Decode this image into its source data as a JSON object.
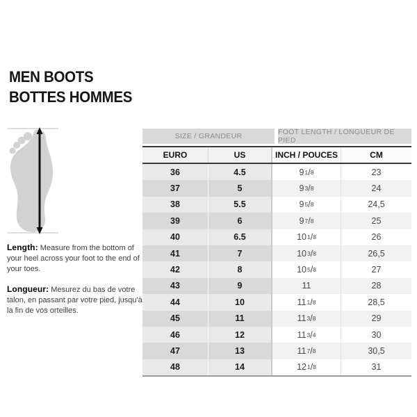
{
  "title": {
    "line1": "MEN BOOTS",
    "line2": "BOTTES HOMMES"
  },
  "instructions": {
    "length_label": "Length:",
    "length_text": "Measure from the bottom of your heel across your foot to the end of your toes.",
    "longueur_label": "Longueur:",
    "longueur_text": "Mesurez du bas de votre talon, en passant par votre pied, jusqu'à la fin de vos orteilles."
  },
  "table": {
    "group_headers": [
      "SIZE / GRANDEUR",
      "FOOT LENGTH / LONGUEUR DE PIED"
    ],
    "columns": [
      "EURO",
      "US",
      "INCH / POUCES",
      "CM"
    ],
    "rows": [
      [
        "36",
        "4.5",
        "9 1/8",
        "23"
      ],
      [
        "37",
        "5",
        "9 3/8",
        "24"
      ],
      [
        "38",
        "5.5",
        "9 5/8",
        "24,5"
      ],
      [
        "39",
        "6",
        "9 7/8",
        "25"
      ],
      [
        "40",
        "6.5",
        "10 1/8",
        "26"
      ],
      [
        "41",
        "7",
        "10 3/8",
        "26,5"
      ],
      [
        "42",
        "8",
        "10 5/8",
        "27"
      ],
      [
        "43",
        "9",
        "11",
        "28"
      ],
      [
        "44",
        "10",
        "11 1/8",
        "28,5"
      ],
      [
        "45",
        "11",
        "11 3/8",
        "29"
      ],
      [
        "46",
        "12",
        "11 3/4",
        "30"
      ],
      [
        "47",
        "13",
        "11 7/8",
        "30,5"
      ],
      [
        "48",
        "14",
        "12 1/8",
        "31"
      ]
    ]
  },
  "icons": {
    "foot_illustration": "foot-measure-icon"
  },
  "colors": {
    "group_header_bg": "#d9d9d9",
    "group_header_text": "#8a8a8a",
    "row_left_odd": "#e9e9e9",
    "row_left_even": "#d9d9d9",
    "row_right_odd": "#ffffff",
    "row_right_even": "#f1f1f1",
    "header_border": "#3a3a3a",
    "table_bottom_border": "#9a9a9a",
    "foot_fill": "#d2d2d2",
    "arrow": "#111111"
  }
}
